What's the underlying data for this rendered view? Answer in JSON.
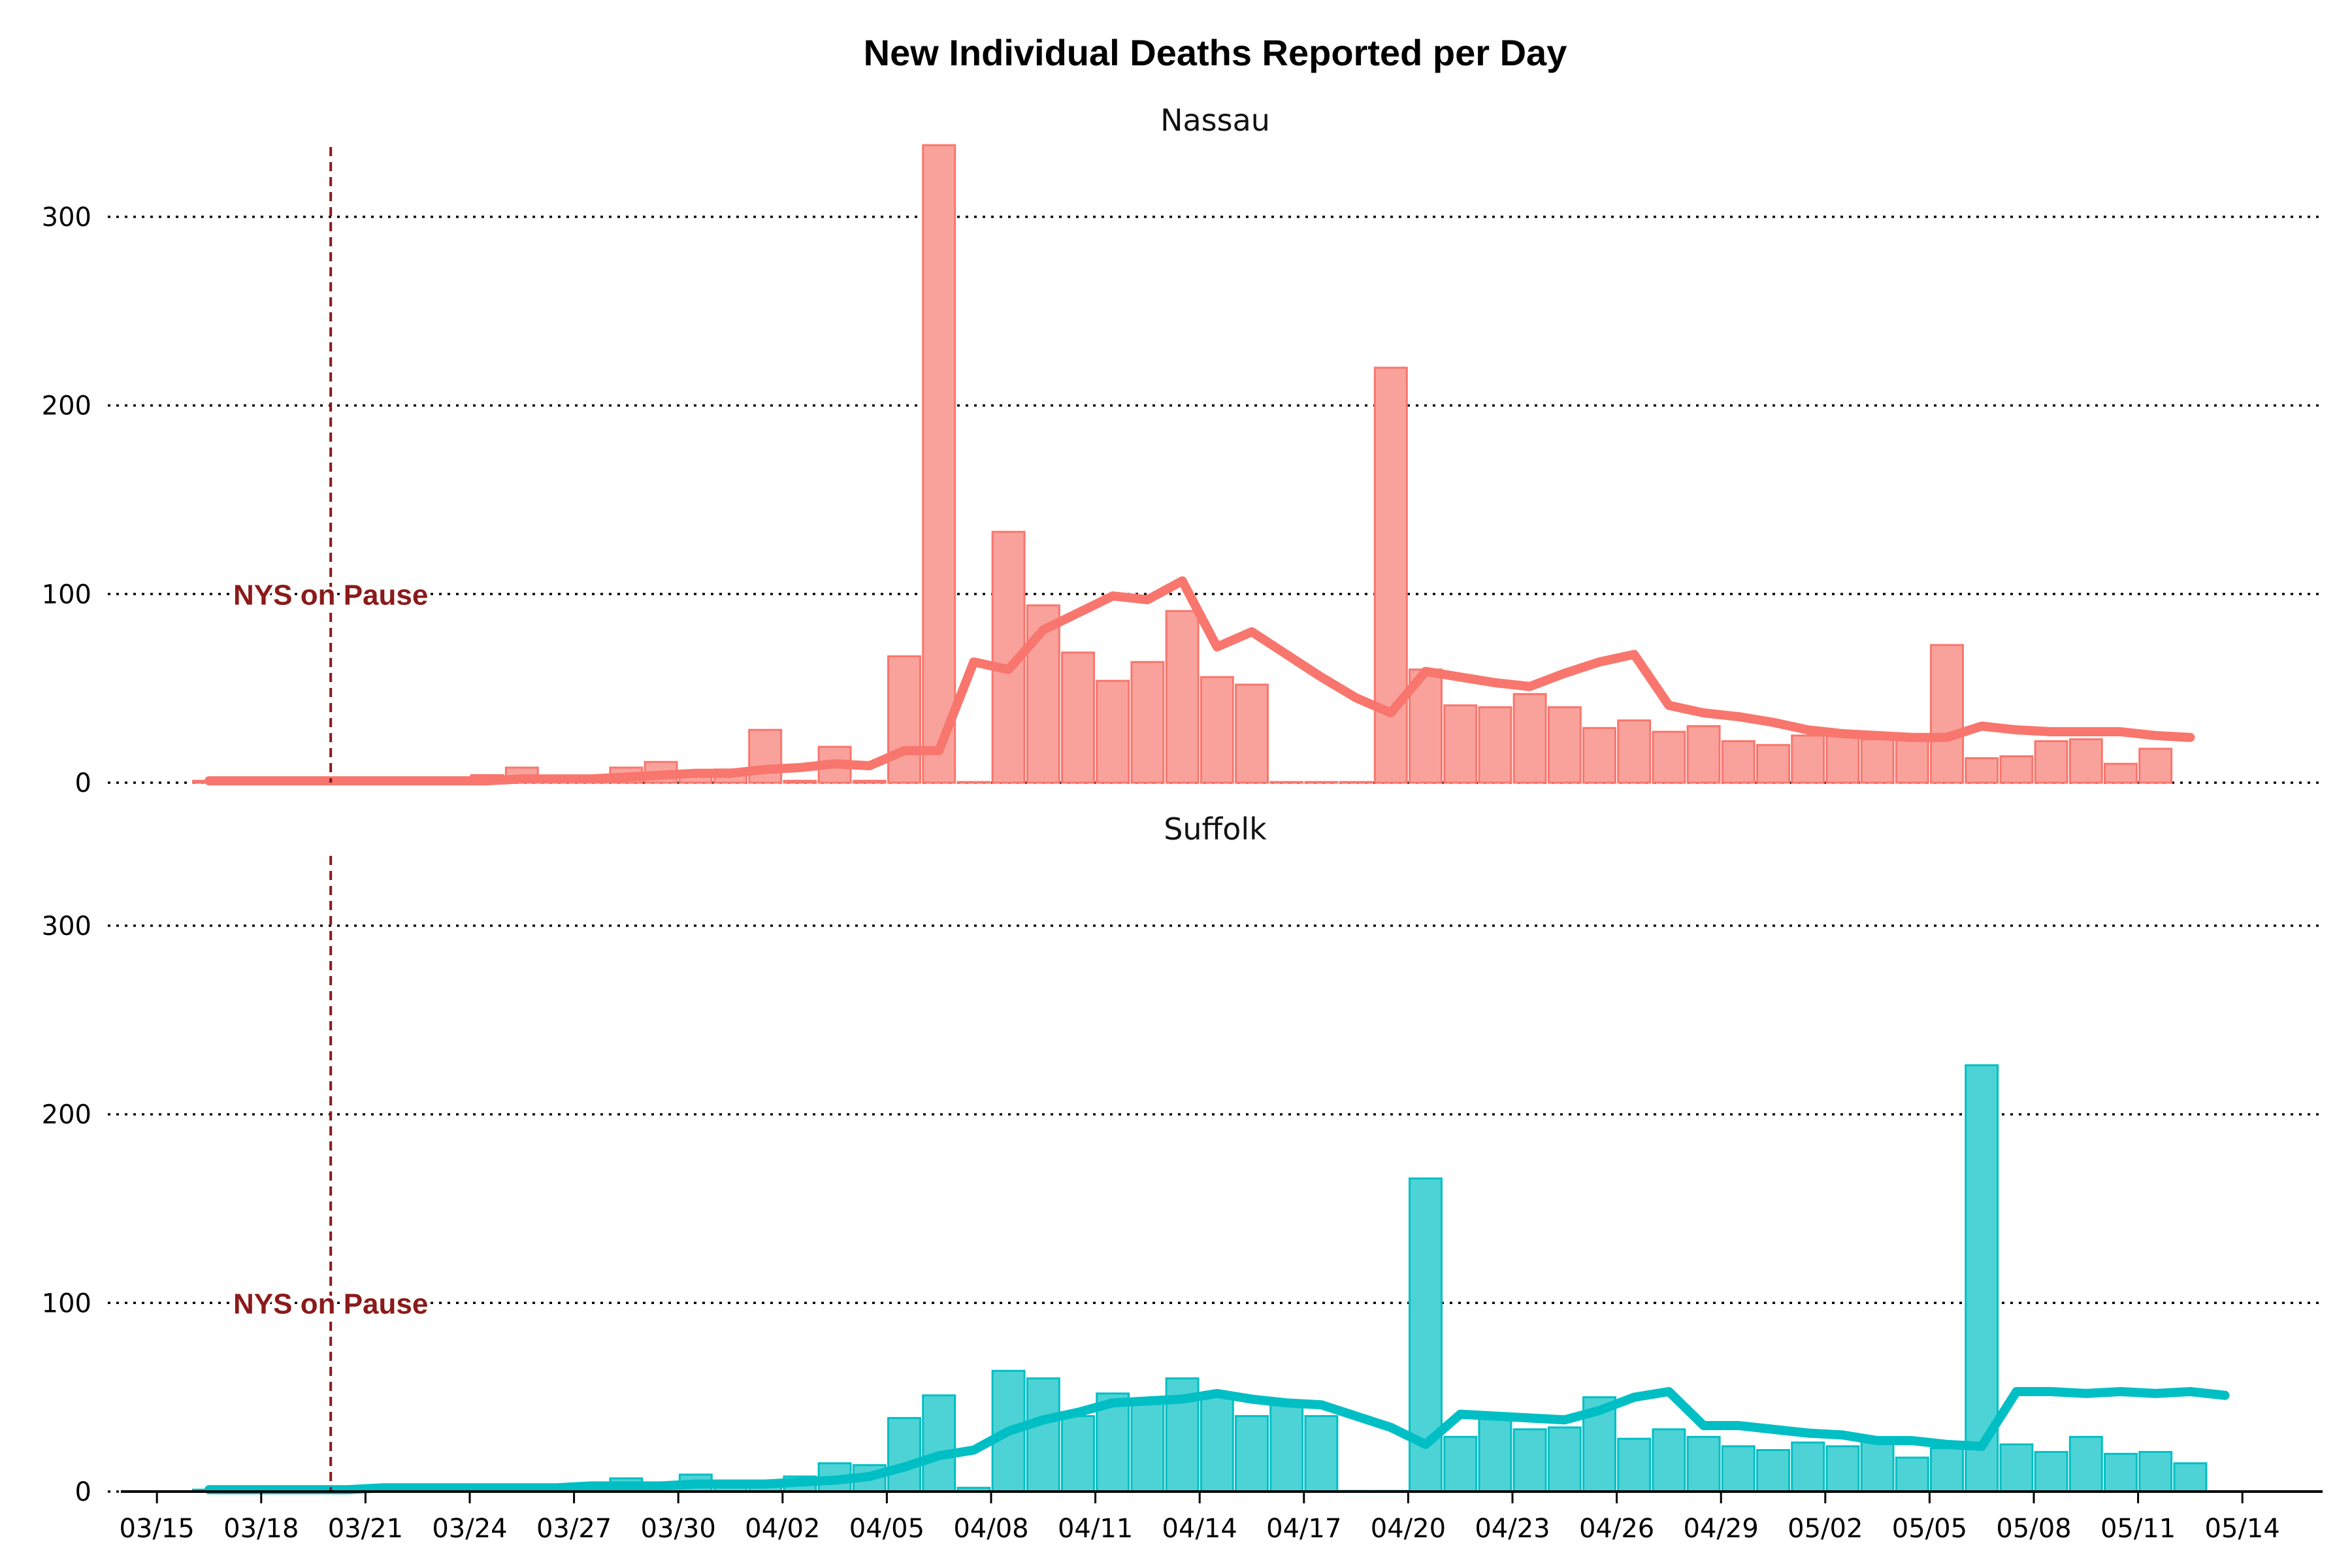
{
  "title": "New Individual Deaths Reported per Day",
  "chart_data": [
    {
      "type": "bar",
      "panel": "Nassau",
      "series_type": "bar+line",
      "color": "#f8766d",
      "bar_fill": "#f9a29c",
      "start_date": "03/16",
      "ylim": [
        0,
        340
      ],
      "yticks": [
        0,
        100,
        200,
        300
      ],
      "bars": [
        1,
        1,
        1,
        1,
        1,
        1,
        1,
        1,
        4,
        8,
        2,
        2,
        8,
        11,
        4,
        7,
        28,
        1,
        19,
        1,
        67,
        338,
        0,
        133,
        94,
        69,
        54,
        64,
        91,
        56,
        52,
        0,
        0,
        0,
        220,
        60,
        41,
        40,
        47,
        40,
        29,
        33,
        27,
        30,
        22,
        20,
        25,
        25,
        23,
        24,
        73,
        13,
        14,
        22,
        23,
        10,
        18
      ],
      "rolling_avg": [
        1,
        1,
        1,
        1,
        1,
        1,
        1,
        1,
        1,
        2,
        2,
        2,
        3,
        4,
        5,
        5,
        7,
        8,
        10,
        9,
        17,
        17,
        64,
        60,
        81,
        90,
        99,
        97,
        107,
        72,
        80,
        68,
        56,
        45,
        37,
        59,
        56,
        53,
        51,
        58,
        64,
        68,
        41,
        37,
        35,
        32,
        28,
        26,
        25,
        24,
        24,
        30,
        28,
        27,
        27,
        27,
        25,
        24
      ],
      "annotation": {
        "text": "NYS on Pause",
        "date": "03/20",
        "y": 100
      }
    },
    {
      "type": "bar",
      "panel": "Suffolk",
      "series_type": "bar+line",
      "color": "#00bfc4",
      "bar_fill": "#4dd3d6",
      "start_date": "03/16",
      "ylim": [
        0,
        340
      ],
      "yticks": [
        0,
        100,
        200,
        300
      ],
      "bars": [
        1,
        1,
        1,
        1,
        2,
        2,
        2,
        2,
        2,
        3,
        3,
        3,
        7,
        3,
        9,
        3,
        4,
        8,
        15,
        14,
        39,
        51,
        2,
        64,
        60,
        40,
        52,
        48,
        60,
        52,
        40,
        47,
        40,
        0,
        0,
        166,
        29,
        39,
        33,
        34,
        50,
        28,
        33,
        29,
        24,
        22,
        26,
        24,
        28,
        18,
        23,
        226,
        25,
        21,
        29,
        20,
        21,
        15
      ],
      "rolling_avg": [
        1,
        1,
        1,
        1,
        1,
        2,
        2,
        2,
        2,
        2,
        2,
        3,
        3,
        3,
        4,
        4,
        4,
        5,
        6,
        8,
        13,
        19,
        22,
        32,
        38,
        42,
        47,
        48,
        49,
        52,
        49,
        47,
        46,
        40,
        34,
        25,
        41,
        40,
        39,
        38,
        43,
        50,
        53,
        35,
        35,
        33,
        31,
        30,
        27,
        27,
        25,
        24,
        53,
        53,
        52,
        53,
        52,
        53,
        51
      ],
      "annotation": {
        "text": "NYS on Pause",
        "date": "03/20",
        "y": 100
      }
    }
  ],
  "x_ticks": [
    "03/15",
    "03/18",
    "03/21",
    "03/24",
    "03/27",
    "03/30",
    "04/02",
    "04/05",
    "04/08",
    "04/11",
    "04/14",
    "04/17",
    "04/20",
    "04/23",
    "04/26",
    "04/29",
    "05/02",
    "05/05",
    "05/08",
    "05/11",
    "05/14"
  ]
}
